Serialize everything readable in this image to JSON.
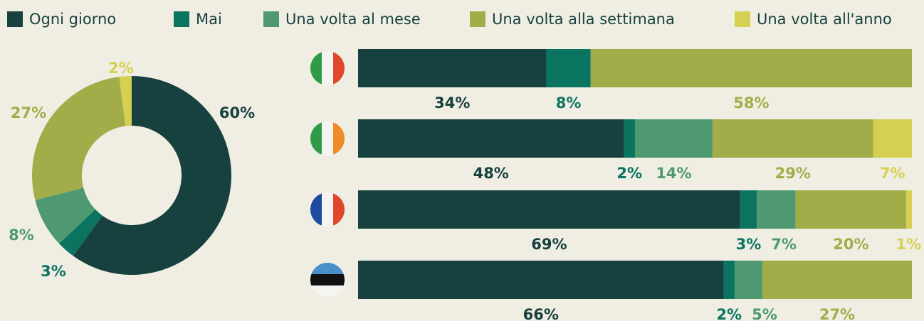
{
  "chart_data": [
    {
      "type": "pie",
      "donut": true,
      "values": [
        60,
        3,
        8,
        27,
        2
      ],
      "value_labels": [
        "60%",
        "3%",
        "8%",
        "27%",
        "2%"
      ],
      "colors": [
        "#17413f",
        "#0a7461",
        "#4e9971",
        "#a2ad4a",
        "#d5cf52"
      ]
    },
    {
      "type": "bar",
      "orientation": "horizontal",
      "stacked": true,
      "categories": [
        null,
        null,
        null,
        null
      ],
      "xlim": [
        0,
        100
      ],
      "legend": "top",
      "series": [
        {
          "name": "Ogni giorno",
          "color": "#17413f",
          "values": [
            34,
            48,
            69,
            66
          ],
          "value_labels": [
            "34%",
            "48%",
            "69%",
            "66%"
          ]
        },
        {
          "name": "Mai",
          "color": "#0a7461",
          "values": [
            8,
            2,
            3,
            2
          ],
          "value_labels": [
            "8%",
            "2%",
            "3%",
            "2%"
          ]
        },
        {
          "name": "Una volta al mese",
          "color": "#4e9971",
          "values": [
            null,
            14,
            7,
            5
          ],
          "value_labels": [
            null,
            "14%",
            "7%",
            "5%"
          ]
        },
        {
          "name": "Una volta alla settimana",
          "color": "#a2ad4a",
          "values": [
            58,
            29,
            20,
            27
          ],
          "value_labels": [
            "58%",
            "29%",
            "20%",
            "27%"
          ]
        },
        {
          "name": "Una volta all'anno",
          "color": "#d5cf52",
          "values": [
            null,
            7,
            1,
            null
          ],
          "value_labels": [
            null,
            "7%",
            "1%",
            null
          ]
        }
      ]
    }
  ]
}
